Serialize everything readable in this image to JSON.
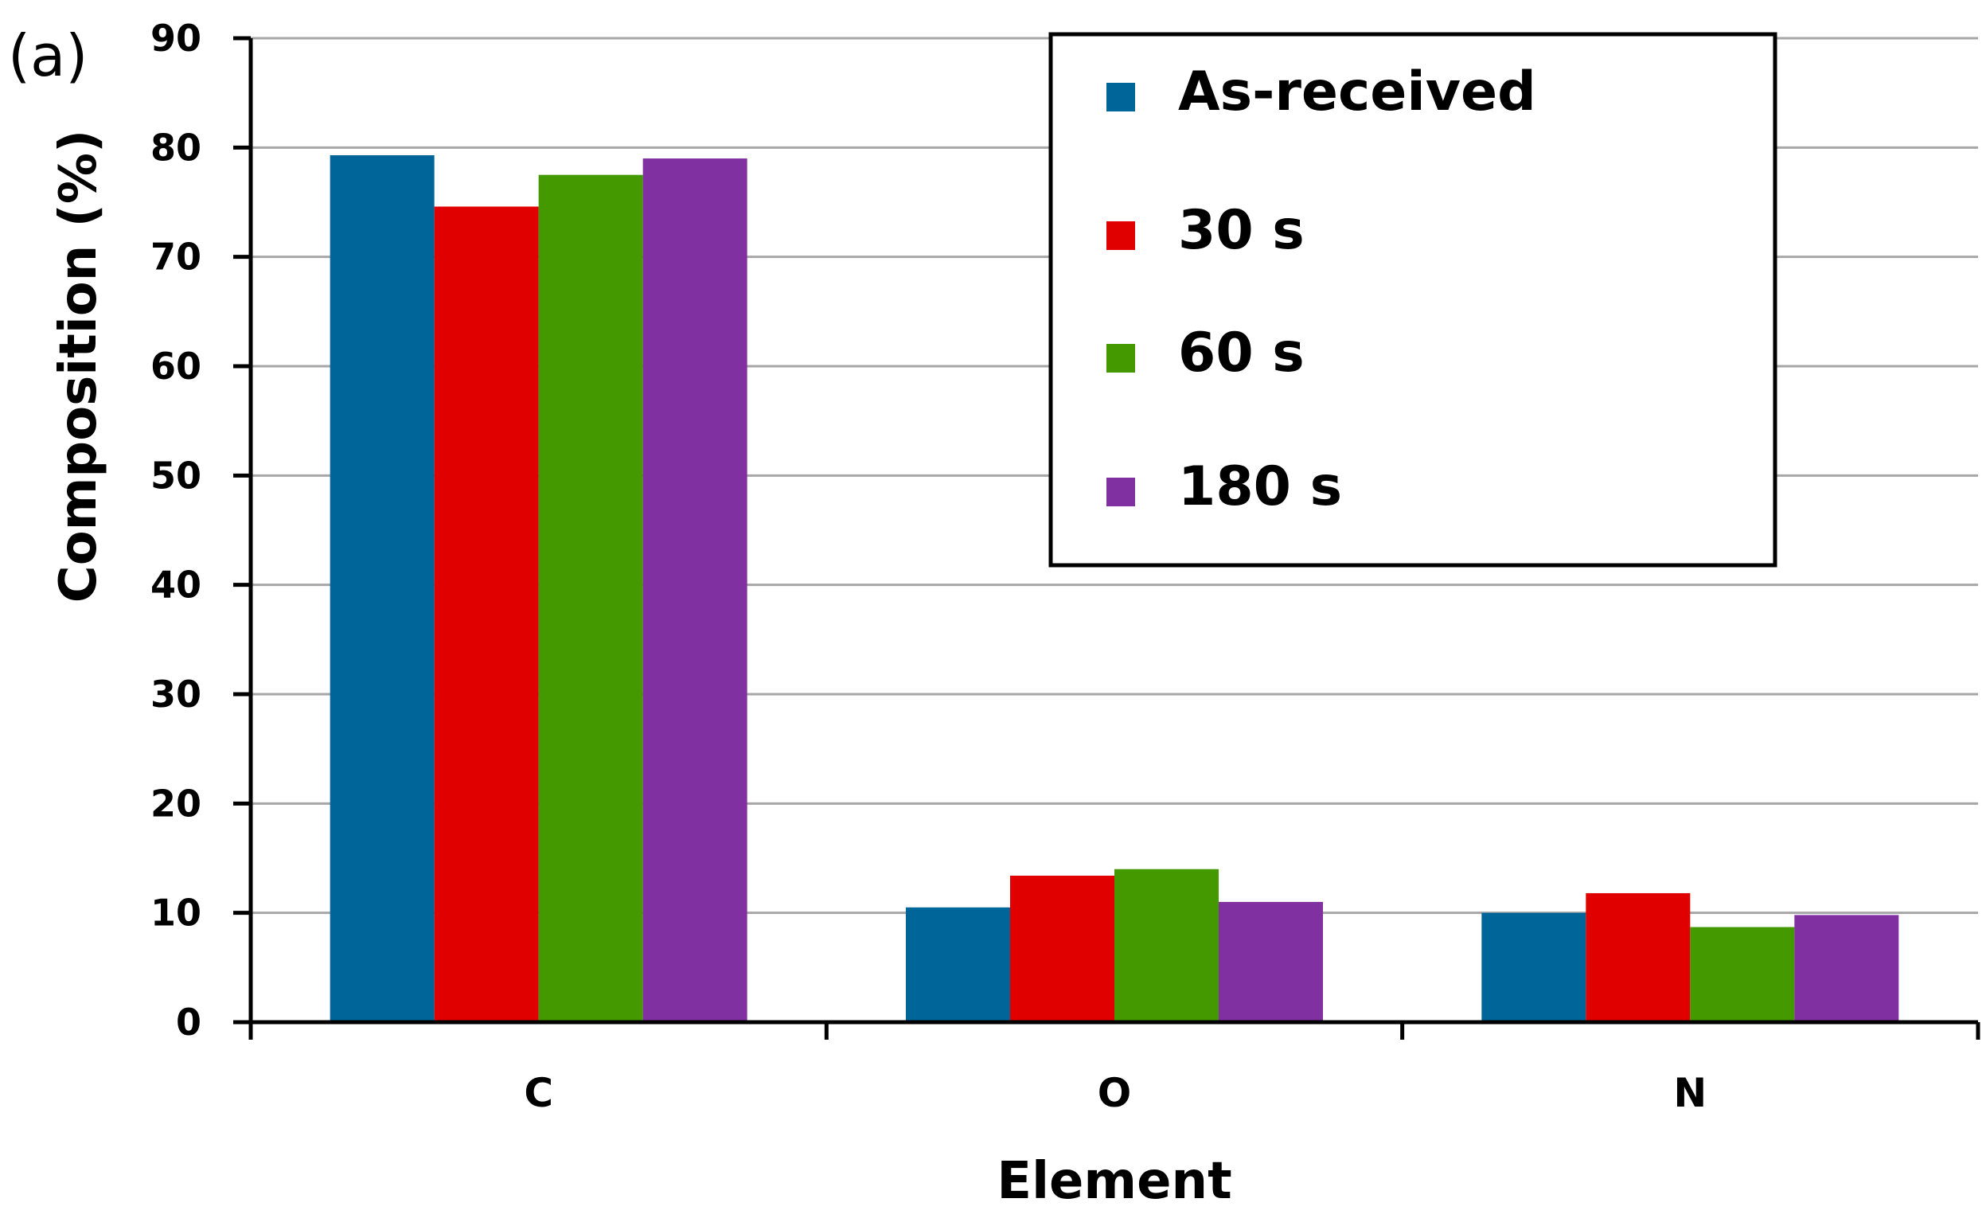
{
  "panel_label": "(a)",
  "chart_data": {
    "type": "bar",
    "categories": [
      "C",
      "O",
      "N"
    ],
    "series": [
      {
        "name": "As-received",
        "color": "#006699",
        "values": [
          79.3,
          10.5,
          10.0
        ]
      },
      {
        "name": "30 s",
        "color": "#e00000",
        "values": [
          74.6,
          13.4,
          11.8
        ]
      },
      {
        "name": "60 s",
        "color": "#449900",
        "values": [
          77.5,
          14.0,
          8.7
        ]
      },
      {
        "name": "180 s",
        "color": "#8030a0",
        "values": [
          79.0,
          11.0,
          9.8
        ]
      }
    ],
    "title": "",
    "xlabel": "Element",
    "ylabel": "Composition (%)",
    "ylim": [
      0,
      90
    ],
    "yticks": [
      "0",
      "10",
      "20",
      "30",
      "40",
      "50",
      "60",
      "70",
      "80",
      "90"
    ],
    "grid": true,
    "legend_position": "top-right"
  }
}
